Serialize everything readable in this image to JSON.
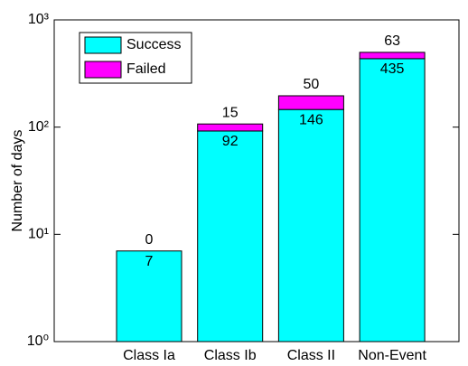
{
  "chart_data": {
    "type": "bar",
    "stacked": true,
    "log_scale": true,
    "ylabel": "Number of days",
    "categories": [
      "Class Ia",
      "Class Ib",
      "Class II",
      "Non-Event"
    ],
    "series": [
      {
        "name": "Success",
        "color": "#00ffff",
        "values": [
          7,
          92,
          146,
          435
        ]
      },
      {
        "name": "Failed",
        "color": "#ff00ff",
        "values": [
          0,
          15,
          50,
          63
        ]
      }
    ],
    "ylim": [
      1,
      1000
    ],
    "yticks": [
      {
        "value": 1,
        "label": "10⁰"
      },
      {
        "value": 10,
        "label": "10¹"
      },
      {
        "value": 100,
        "label": "10²"
      },
      {
        "value": 1000,
        "label": "10³"
      }
    ],
    "legend": "upper left"
  }
}
